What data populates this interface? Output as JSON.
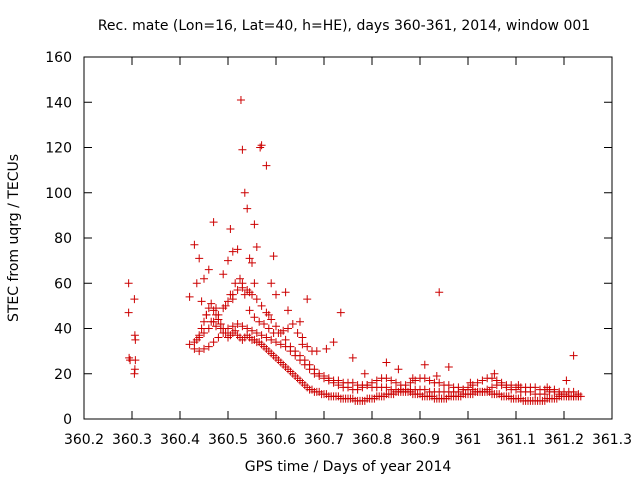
{
  "chart_data": {
    "type": "scatter",
    "title": "Rec. mate (Lon=16, Lat=40, h=HE), days 360-361, 2014, window 001",
    "xlabel": "GPS time / Days of year 2014",
    "ylabel": "STEC from uqrg / TECUs",
    "xlim": [
      360.2,
      361.3
    ],
    "ylim": [
      0,
      160
    ],
    "xticks": [
      "360.2",
      "360.3",
      "360.4",
      "360.5",
      "360.6",
      "360.7",
      "360.8",
      "360.9",
      "361",
      "361.1",
      "361.2",
      "361.3"
    ],
    "yticks": [
      "0",
      "20",
      "40",
      "60",
      "80",
      "100",
      "120",
      "140",
      "160"
    ],
    "grid": false,
    "marker": "+",
    "color": "#cc0000",
    "x": [
      360.293,
      360.293,
      360.294,
      360.296,
      360.305,
      360.306,
      360.307,
      360.307,
      360.306,
      360.305,
      360.42,
      360.43,
      360.435,
      360.44,
      360.445,
      360.45,
      360.455,
      360.46,
      360.465,
      360.47,
      360.475,
      360.48,
      360.485,
      360.49,
      360.495,
      360.5,
      360.505,
      360.51,
      360.515,
      360.52,
      360.525,
      360.53,
      360.535,
      360.54,
      360.545,
      360.55,
      360.555,
      360.56,
      360.565,
      360.57,
      360.575,
      360.58,
      360.585,
      360.59,
      360.595,
      360.6,
      360.605,
      360.61,
      360.615,
      360.62,
      360.625,
      360.63,
      360.635,
      360.64,
      360.645,
      360.65,
      360.655,
      360.66,
      360.665,
      360.67,
      360.675,
      360.68,
      360.685,
      360.69,
      360.695,
      360.7,
      360.705,
      360.71,
      360.715,
      360.72,
      360.725,
      360.73,
      360.735,
      360.74,
      360.745,
      360.75,
      360.755,
      360.76,
      360.765,
      360.77,
      360.775,
      360.78,
      360.785,
      360.79,
      360.795,
      360.8,
      360.805,
      360.81,
      360.815,
      360.82,
      360.825,
      360.83,
      360.835,
      360.84,
      360.845,
      360.85,
      360.855,
      360.86,
      360.865,
      360.87,
      360.875,
      360.88,
      360.885,
      360.89,
      360.895,
      360.9,
      360.905,
      360.91,
      360.915,
      360.92,
      360.925,
      360.93,
      360.935,
      360.94,
      360.945,
      360.95,
      360.955,
      360.96,
      360.965,
      360.97,
      360.975,
      360.98,
      360.985,
      360.99,
      360.995,
      361.0,
      361.005,
      361.01,
      361.015,
      361.02,
      361.025,
      361.03,
      361.035,
      361.04,
      361.045,
      361.05,
      361.055,
      361.06,
      361.065,
      361.07,
      361.075,
      361.08,
      361.085,
      361.09,
      361.095,
      361.1,
      361.105,
      361.11,
      361.115,
      361.12,
      361.125,
      361.13,
      361.135,
      361.14,
      361.145,
      361.15,
      361.155,
      361.16,
      361.165,
      361.17,
      361.175,
      361.18,
      361.185,
      361.19,
      361.195,
      361.2,
      361.205,
      361.21,
      361.215,
      361.22,
      361.225,
      361.23,
      361.235,
      360.43,
      360.44,
      360.45,
      360.46,
      360.47,
      360.48,
      360.49,
      360.5,
      360.51,
      360.52,
      360.53,
      360.54,
      360.55,
      360.56,
      360.57,
      360.58,
      360.59,
      360.6,
      360.61,
      360.62,
      360.63,
      360.64,
      360.65,
      360.66,
      360.67,
      360.68,
      360.69,
      360.7,
      360.71,
      360.72,
      360.73,
      360.74,
      360.75,
      360.76,
      360.77,
      360.78,
      360.79,
      360.8,
      360.81,
      360.82,
      360.83,
      360.84,
      360.85,
      360.86,
      360.87,
      360.88,
      360.89,
      360.9,
      360.91,
      360.92,
      360.93,
      360.94,
      360.95,
      360.96,
      360.97,
      360.98,
      360.99,
      361.0,
      361.01,
      361.02,
      361.03,
      361.04,
      361.05,
      361.06,
      361.07,
      361.08,
      361.09,
      361.1,
      361.11,
      361.12,
      361.13,
      361.14,
      361.15,
      361.16,
      361.17,
      361.18,
      361.19,
      361.2,
      361.21,
      361.22,
      361.23,
      360.44,
      360.45,
      360.46,
      360.47,
      360.48,
      360.49,
      360.5,
      360.51,
      360.52,
      360.53,
      360.54,
      360.55,
      360.56,
      360.57,
      360.58,
      360.59,
      360.6,
      360.61,
      360.62,
      360.63,
      360.64,
      360.65,
      360.66,
      360.67,
      360.68,
      360.69,
      360.7,
      360.71,
      360.72,
      360.73,
      360.74,
      360.75,
      360.76,
      360.77,
      360.78,
      360.79,
      360.8,
      360.81,
      360.82,
      360.83,
      360.84,
      360.85,
      360.86,
      360.87,
      360.88,
      360.89,
      360.9,
      360.91,
      360.92,
      360.93,
      360.94,
      360.95,
      360.96,
      360.97,
      360.98,
      360.99,
      361.0,
      361.01,
      361.02,
      361.03,
      361.04,
      361.05,
      361.06,
      361.07,
      361.08,
      361.09,
      361.1,
      361.11,
      361.12,
      361.13,
      361.14,
      361.15,
      361.16,
      361.17,
      361.18,
      361.19,
      361.2,
      361.21,
      361.22,
      361.23,
      360.42,
      360.435,
      360.445,
      360.455,
      360.465,
      360.475,
      360.485,
      360.495,
      360.505,
      360.515,
      360.525,
      360.535,
      360.545,
      360.555,
      360.565,
      360.575,
      360.585,
      360.595,
      360.605,
      360.615,
      360.625,
      360.635,
      360.645,
      360.655,
      360.665,
      360.675,
      360.43,
      360.44,
      360.47,
      360.49,
      360.505,
      360.51,
      360.52,
      360.527,
      360.53,
      360.535,
      360.54,
      360.545,
      360.55,
      360.555,
      360.56,
      360.567,
      360.57,
      360.58,
      360.59,
      360.595,
      360.6,
      360.62,
      360.65,
      360.665,
      360.72,
      360.76,
      360.83,
      360.91,
      360.94,
      360.96,
      361.22,
      360.45,
      360.46,
      360.475,
      360.5,
      360.51,
      360.53,
      360.545,
      360.555,
      360.585,
      360.625,
      360.655,
      360.685,
      360.705,
      360.735,
      360.785,
      360.855,
      360.885,
      360.935,
      361.005,
      361.055,
      361.105,
      361.165,
      361.205
    ],
    "y": [
      60,
      47,
      27,
      26,
      53,
      37,
      35,
      26,
      22,
      20,
      33,
      34,
      35,
      37,
      40,
      43,
      46,
      49,
      51,
      48,
      46,
      44,
      42,
      40,
      38,
      36,
      37,
      38,
      39,
      37,
      36,
      35,
      36,
      37,
      36,
      35,
      35,
      34,
      34,
      33,
      32,
      31,
      30,
      29,
      28,
      27,
      26,
      25,
      24,
      23,
      22,
      21,
      20,
      19,
      18,
      17,
      16,
      15,
      14,
      13,
      13,
      12,
      12,
      12,
      11,
      11,
      11,
      10,
      10,
      10,
      10,
      10,
      9,
      9,
      9,
      9,
      9,
      9,
      8,
      8,
      8,
      8,
      8,
      9,
      9,
      9,
      9,
      10,
      10,
      10,
      10,
      11,
      11,
      11,
      11,
      12,
      12,
      12,
      12,
      12,
      12,
      12,
      11,
      11,
      11,
      11,
      10,
      10,
      10,
      10,
      10,
      9,
      9,
      9,
      9,
      9,
      9,
      10,
      10,
      10,
      10,
      10,
      10,
      11,
      11,
      11,
      11,
      11,
      12,
      12,
      12,
      12,
      12,
      12,
      12,
      11,
      11,
      11,
      11,
      10,
      10,
      10,
      10,
      9,
      9,
      9,
      9,
      9,
      8,
      8,
      8,
      8,
      8,
      8,
      8,
      8,
      8,
      8,
      9,
      9,
      9,
      9,
      9,
      10,
      10,
      10,
      10,
      10,
      10,
      10,
      10,
      10,
      10,
      31,
      30,
      31,
      32,
      34,
      36,
      38,
      40,
      41,
      42,
      41,
      40,
      39,
      38,
      37,
      36,
      35,
      34,
      33,
      32,
      30,
      28,
      26,
      24,
      22,
      20,
      19,
      18,
      17,
      16,
      15,
      14,
      14,
      13,
      13,
      14,
      15,
      16,
      17,
      18,
      18,
      17,
      16,
      15,
      15,
      16,
      17,
      18,
      18,
      17,
      16,
      16,
      15,
      15,
      14,
      14,
      13,
      13,
      13,
      12,
      12,
      13,
      14,
      15,
      15,
      14,
      13,
      13,
      12,
      12,
      12,
      11,
      11,
      11,
      12,
      12,
      11,
      11,
      10,
      10,
      10,
      36,
      38,
      40,
      43,
      46,
      49,
      52,
      55,
      57,
      58,
      57,
      55,
      53,
      50,
      47,
      44,
      41,
      38,
      35,
      32,
      30,
      28,
      26,
      24,
      22,
      20,
      19,
      18,
      17,
      17,
      16,
      16,
      16,
      15,
      15,
      15,
      14,
      14,
      14,
      14,
      13,
      13,
      13,
      13,
      13,
      13,
      13,
      13,
      12,
      12,
      12,
      12,
      12,
      12,
      12,
      13,
      14,
      15,
      16,
      17,
      18,
      18,
      17,
      16,
      15,
      15,
      14,
      14,
      14,
      14,
      14,
      13,
      13,
      13,
      13,
      12,
      12,
      12,
      12,
      11,
      54,
      60,
      52,
      46,
      43,
      41,
      40,
      50,
      55,
      60,
      62,
      55,
      48,
      45,
      43,
      42,
      40,
      38,
      38,
      39,
      40,
      42,
      38,
      36,
      32,
      30,
      77,
      71,
      87,
      64,
      84,
      74,
      75,
      141,
      119,
      100,
      93,
      71,
      69,
      86,
      76,
      120,
      121,
      112,
      60,
      72,
      55,
      56,
      43,
      53,
      34,
      27,
      25,
      24,
      56,
      23,
      28,
      62,
      66,
      49,
      70,
      53,
      60,
      56,
      60,
      46,
      48,
      33,
      30,
      31,
      47,
      20,
      22,
      18,
      19,
      16,
      20,
      15,
      14,
      17
    ]
  }
}
